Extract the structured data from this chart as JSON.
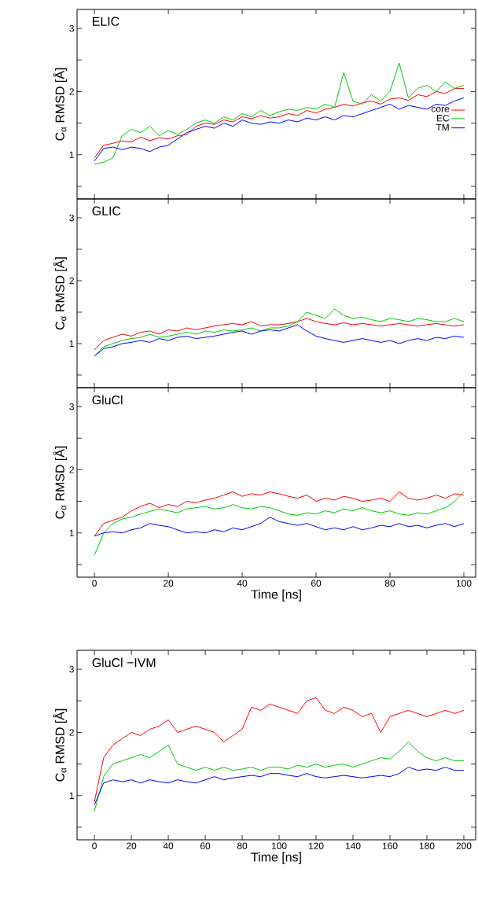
{
  "chart_data": [
    {
      "type": "line",
      "title": "ELIC",
      "ylabel": "C$_{α}$ RMSD [Å]",
      "xlim": [
        -4.7,
        103.2
      ],
      "ylim": [
        0.3,
        3.3
      ],
      "xticks": [
        0,
        20,
        40,
        60,
        80,
        100
      ],
      "yticks": [
        {
          "value": 0.5,
          "label": null
        },
        1,
        {
          "value": 1.5,
          "label": null
        },
        2,
        {
          "value": 2.5,
          "label": null
        },
        3
      ],
      "tick_labels": "y",
      "legend": "right",
      "x": [
        0,
        2.5,
        5,
        7.5,
        10,
        12.5,
        15,
        17.5,
        20,
        22.5,
        25,
        27.5,
        30,
        32.5,
        35,
        37.5,
        40,
        42.5,
        45,
        47.5,
        50,
        52.5,
        55,
        57.5,
        60,
        62.5,
        65,
        67.5,
        70,
        72.5,
        75,
        77.5,
        80,
        82.5,
        85,
        87.5,
        90,
        92.5,
        95,
        97.5,
        100
      ],
      "series": [
        {
          "name": "core",
          "color": "#ff0000",
          "values": [
            0.95,
            1.15,
            1.18,
            1.22,
            1.2,
            1.28,
            1.22,
            1.27,
            1.25,
            1.3,
            1.32,
            1.45,
            1.5,
            1.48,
            1.55,
            1.52,
            1.6,
            1.57,
            1.62,
            1.58,
            1.6,
            1.65,
            1.62,
            1.7,
            1.66,
            1.72,
            1.75,
            1.8,
            1.77,
            1.82,
            1.85,
            1.8,
            1.88,
            1.9,
            1.86,
            1.95,
            1.92,
            2.0,
            1.97,
            2.05,
            2.05
          ]
        },
        {
          "name": "EC",
          "color": "#00cc00",
          "values": [
            0.85,
            0.88,
            0.95,
            1.3,
            1.4,
            1.35,
            1.45,
            1.3,
            1.38,
            1.32,
            1.4,
            1.5,
            1.55,
            1.5,
            1.6,
            1.55,
            1.65,
            1.6,
            1.7,
            1.62,
            1.68,
            1.72,
            1.7,
            1.75,
            1.72,
            1.8,
            1.75,
            2.3,
            1.85,
            1.8,
            1.95,
            1.85,
            2.0,
            2.45,
            1.9,
            2.05,
            2.1,
            2.0,
            2.15,
            2.05,
            2.1
          ]
        },
        {
          "name": "TM",
          "color": "#0000ff",
          "values": [
            0.9,
            1.1,
            1.12,
            1.08,
            1.12,
            1.1,
            1.05,
            1.12,
            1.15,
            1.25,
            1.35,
            1.4,
            1.45,
            1.42,
            1.5,
            1.45,
            1.55,
            1.5,
            1.48,
            1.52,
            1.5,
            1.55,
            1.52,
            1.58,
            1.55,
            1.6,
            1.55,
            1.62,
            1.6,
            1.65,
            1.7,
            1.75,
            1.8,
            1.72,
            1.78,
            1.75,
            1.72,
            1.8,
            1.78,
            1.85,
            1.9
          ]
        }
      ]
    },
    {
      "type": "line",
      "title": "GLIC",
      "ylabel": "C$_{α}$ RMSD [Å]",
      "xlim": [
        -4.7,
        103.2
      ],
      "ylim": [
        0.3,
        3.3
      ],
      "xticks": [
        0,
        20,
        40,
        60,
        80,
        100
      ],
      "yticks": [
        {
          "value": 0.5,
          "label": null
        },
        1,
        {
          "value": 1.5,
          "label": null
        },
        2,
        {
          "value": 2.5,
          "label": null
        },
        3
      ],
      "tick_labels": "y",
      "x": [
        0,
        2.5,
        5,
        7.5,
        10,
        12.5,
        15,
        17.5,
        20,
        22.5,
        25,
        27.5,
        30,
        32.5,
        35,
        37.5,
        40,
        42.5,
        45,
        47.5,
        50,
        52.5,
        55,
        57.5,
        60,
        62.5,
        65,
        67.5,
        70,
        72.5,
        75,
        77.5,
        80,
        82.5,
        85,
        87.5,
        90,
        92.5,
        95,
        97.5,
        100
      ],
      "series": [
        {
          "color": "#ff0000",
          "values": [
            0.9,
            1.05,
            1.1,
            1.15,
            1.12,
            1.18,
            1.2,
            1.15,
            1.22,
            1.2,
            1.25,
            1.22,
            1.25,
            1.28,
            1.3,
            1.32,
            1.3,
            1.35,
            1.28,
            1.3,
            1.3,
            1.32,
            1.35,
            1.4,
            1.35,
            1.32,
            1.3,
            1.33,
            1.3,
            1.32,
            1.3,
            1.28,
            1.3,
            1.32,
            1.3,
            1.28,
            1.3,
            1.32,
            1.3,
            1.28,
            1.3
          ]
        },
        {
          "color": "#00cc00",
          "values": [
            0.8,
            0.95,
            1.0,
            1.05,
            1.08,
            1.1,
            1.15,
            1.1,
            1.12,
            1.15,
            1.18,
            1.15,
            1.2,
            1.18,
            1.22,
            1.2,
            1.22,
            1.25,
            1.2,
            1.25,
            1.25,
            1.28,
            1.35,
            1.5,
            1.45,
            1.4,
            1.55,
            1.45,
            1.4,
            1.42,
            1.38,
            1.35,
            1.4,
            1.38,
            1.35,
            1.4,
            1.38,
            1.35,
            1.35,
            1.4,
            1.35
          ]
        },
        {
          "color": "#0000ff",
          "values": [
            0.8,
            0.92,
            0.95,
            1.0,
            1.02,
            1.05,
            1.02,
            1.08,
            1.05,
            1.1,
            1.12,
            1.08,
            1.1,
            1.12,
            1.15,
            1.18,
            1.2,
            1.15,
            1.2,
            1.22,
            1.2,
            1.25,
            1.3,
            1.2,
            1.12,
            1.08,
            1.05,
            1.02,
            1.05,
            1.08,
            1.05,
            1.02,
            1.05,
            1.0,
            1.05,
            1.08,
            1.05,
            1.1,
            1.08,
            1.12,
            1.1
          ]
        }
      ]
    },
    {
      "type": "line",
      "title": "GluCl",
      "ylabel": "C$_{α}$ RMSD [Å]",
      "xlabel": "Time [ns]",
      "xlim": [
        -4.7,
        103.2
      ],
      "ylim": [
        0.3,
        3.3
      ],
      "xticks": [
        0,
        20,
        40,
        60,
        80,
        100
      ],
      "yticks": [
        {
          "value": 0.5,
          "label": null
        },
        1,
        {
          "value": 1.5,
          "label": null
        },
        2,
        {
          "value": 2.5,
          "label": null
        },
        3
      ],
      "x": [
        0,
        2.5,
        5,
        7.5,
        10,
        12.5,
        15,
        17.5,
        20,
        22.5,
        25,
        27.5,
        30,
        32.5,
        35,
        37.5,
        40,
        42.5,
        45,
        47.5,
        50,
        52.5,
        55,
        57.5,
        60,
        62.5,
        65,
        67.5,
        70,
        72.5,
        75,
        77.5,
        80,
        82.5,
        85,
        87.5,
        90,
        92.5,
        95,
        97.5,
        100
      ],
      "series": [
        {
          "color": "#ff0000",
          "values": [
            0.95,
            1.15,
            1.2,
            1.25,
            1.35,
            1.42,
            1.47,
            1.4,
            1.45,
            1.42,
            1.5,
            1.48,
            1.52,
            1.55,
            1.6,
            1.65,
            1.58,
            1.62,
            1.6,
            1.65,
            1.62,
            1.58,
            1.55,
            1.6,
            1.5,
            1.55,
            1.52,
            1.58,
            1.55,
            1.5,
            1.52,
            1.55,
            1.5,
            1.65,
            1.55,
            1.52,
            1.55,
            1.6,
            1.55,
            1.62,
            1.6
          ]
        },
        {
          "color": "#00cc00",
          "values": [
            0.65,
            1.0,
            1.15,
            1.22,
            1.25,
            1.3,
            1.34,
            1.38,
            1.35,
            1.32,
            1.38,
            1.4,
            1.42,
            1.38,
            1.4,
            1.45,
            1.4,
            1.38,
            1.42,
            1.4,
            1.35,
            1.3,
            1.28,
            1.32,
            1.3,
            1.35,
            1.32,
            1.38,
            1.35,
            1.4,
            1.35,
            1.32,
            1.35,
            1.3,
            1.28,
            1.32,
            1.3,
            1.35,
            1.4,
            1.5,
            1.65
          ]
        },
        {
          "color": "#0000ff",
          "values": [
            0.95,
            1.0,
            1.02,
            1.0,
            1.05,
            1.08,
            1.15,
            1.12,
            1.1,
            1.05,
            1.0,
            1.02,
            1.0,
            1.05,
            1.02,
            1.08,
            1.05,
            1.1,
            1.15,
            1.25,
            1.18,
            1.15,
            1.12,
            1.15,
            1.1,
            1.05,
            1.08,
            1.05,
            1.1,
            1.05,
            1.08,
            1.12,
            1.1,
            1.15,
            1.1,
            1.12,
            1.08,
            1.12,
            1.15,
            1.1,
            1.15
          ]
        }
      ]
    },
    {
      "type": "line",
      "title": "GluCl −IVM",
      "ylabel": "C$_{α}$ RMSD [Å]",
      "xlabel": "Time [ns]",
      "xlim": [
        -9.4,
        206.4
      ],
      "ylim": [
        0.3,
        3.3
      ],
      "xticks": [
        0,
        20,
        40,
        60,
        80,
        100,
        120,
        140,
        160,
        180,
        200
      ],
      "yticks": [
        {
          "value": 0.5,
          "label": null
        },
        1,
        {
          "value": 1.5,
          "label": null
        },
        2,
        {
          "value": 2.5,
          "label": null
        },
        3
      ],
      "x": [
        0,
        5,
        10,
        15,
        20,
        25,
        30,
        35,
        40,
        45,
        50,
        55,
        60,
        65,
        70,
        75,
        80,
        85,
        90,
        95,
        100,
        105,
        110,
        115,
        120,
        125,
        130,
        135,
        140,
        145,
        150,
        155,
        160,
        165,
        170,
        175,
        180,
        185,
        190,
        195,
        200
      ],
      "series": [
        {
          "color": "#ff0000",
          "values": [
            0.9,
            1.6,
            1.8,
            1.9,
            2.0,
            1.95,
            2.05,
            2.1,
            2.2,
            2.0,
            2.05,
            2.1,
            2.05,
            2.0,
            1.85,
            1.95,
            2.05,
            2.4,
            2.35,
            2.45,
            2.4,
            2.35,
            2.3,
            2.5,
            2.55,
            2.35,
            2.3,
            2.4,
            2.35,
            2.25,
            2.3,
            2.0,
            2.25,
            2.3,
            2.35,
            2.3,
            2.25,
            2.3,
            2.35,
            2.3,
            2.35
          ]
        },
        {
          "color": "#00cc00",
          "values": [
            0.75,
            1.3,
            1.5,
            1.55,
            1.6,
            1.65,
            1.6,
            1.7,
            1.8,
            1.5,
            1.45,
            1.4,
            1.45,
            1.4,
            1.45,
            1.4,
            1.42,
            1.45,
            1.4,
            1.45,
            1.45,
            1.42,
            1.48,
            1.45,
            1.5,
            1.45,
            1.48,
            1.5,
            1.45,
            1.5,
            1.55,
            1.6,
            1.58,
            1.7,
            1.85,
            1.7,
            1.6,
            1.55,
            1.6,
            1.55,
            1.55
          ]
        },
        {
          "color": "#0000ff",
          "values": [
            0.85,
            1.2,
            1.25,
            1.22,
            1.25,
            1.2,
            1.25,
            1.22,
            1.2,
            1.25,
            1.22,
            1.2,
            1.25,
            1.3,
            1.25,
            1.28,
            1.3,
            1.32,
            1.3,
            1.35,
            1.35,
            1.32,
            1.3,
            1.35,
            1.3,
            1.28,
            1.3,
            1.32,
            1.3,
            1.28,
            1.3,
            1.32,
            1.3,
            1.35,
            1.45,
            1.4,
            1.42,
            1.4,
            1.45,
            1.4,
            1.4
          ]
        }
      ]
    }
  ]
}
